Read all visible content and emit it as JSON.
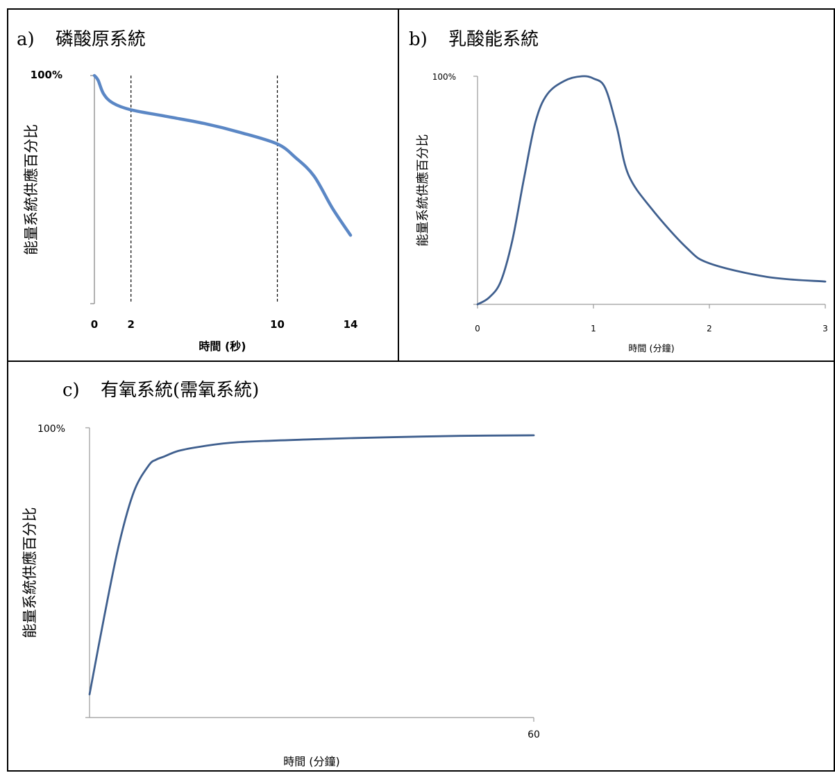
{
  "chart_data": [
    {
      "panel": "a",
      "type": "line",
      "title_prefix": "a)",
      "title": "磷酸原系統",
      "xlabel": "時間 (秒)",
      "ylabel": "能量系統供應百分比",
      "y_tick_label": "100%",
      "x_ticks": [
        0,
        2,
        10,
        14
      ],
      "x_tick_labels": [
        "0",
        "2",
        "10",
        "14"
      ],
      "xlim": [
        0,
        14
      ],
      "ylim": [
        0,
        100
      ],
      "reference_lines_x": [
        2,
        10
      ],
      "color": "#5b87c5",
      "series": [
        {
          "x": [
            0,
            0.2,
            0.5,
            1,
            2,
            4,
            6,
            8,
            10,
            11,
            12,
            13,
            14
          ],
          "values": [
            100,
            98,
            92,
            88,
            85,
            82,
            79,
            75,
            70,
            64,
            56,
            42,
            30
          ]
        }
      ]
    },
    {
      "panel": "b",
      "type": "line",
      "title_prefix": "b)",
      "title": "乳酸能系統",
      "xlabel": "時間 (分鐘)",
      "ylabel": "能量系統供應百分比",
      "y_tick_label": "100%",
      "x_ticks": [
        0,
        1,
        2,
        3
      ],
      "x_tick_labels": [
        "0",
        "1",
        "2",
        "3"
      ],
      "xlim": [
        0,
        3
      ],
      "ylim": [
        0,
        100
      ],
      "color": "#3f5f8e",
      "series": [
        {
          "x": [
            0,
            0.1,
            0.2,
            0.3,
            0.4,
            0.5,
            0.6,
            0.75,
            0.9,
            1.0,
            1.1,
            1.2,
            1.3,
            1.5,
            1.8,
            2.0,
            2.5,
            3.0
          ],
          "values": [
            0,
            3,
            10,
            28,
            55,
            80,
            92,
            98,
            100,
            99,
            95,
            78,
            57,
            42,
            25,
            18,
            12,
            10
          ]
        }
      ]
    },
    {
      "panel": "c",
      "type": "line",
      "title_prefix": "c)",
      "title": "有氧系統(需氧系統)",
      "xlabel": "時間 (分鐘)",
      "ylabel": "能量系統供應百分比",
      "y_tick_label": "100%",
      "x_ticks": [
        60
      ],
      "x_tick_labels": [
        "60"
      ],
      "xlim": [
        0,
        60
      ],
      "ylim": [
        0,
        100
      ],
      "color": "#3f5f8e",
      "series": [
        {
          "x": [
            0,
            2,
            4,
            6,
            8,
            9,
            10,
            12,
            15,
            20,
            30,
            40,
            50,
            60
          ],
          "values": [
            8,
            35,
            60,
            78,
            87,
            89,
            90,
            92,
            93.5,
            95,
            96,
            96.7,
            97.2,
            97.4
          ]
        }
      ]
    }
  ]
}
